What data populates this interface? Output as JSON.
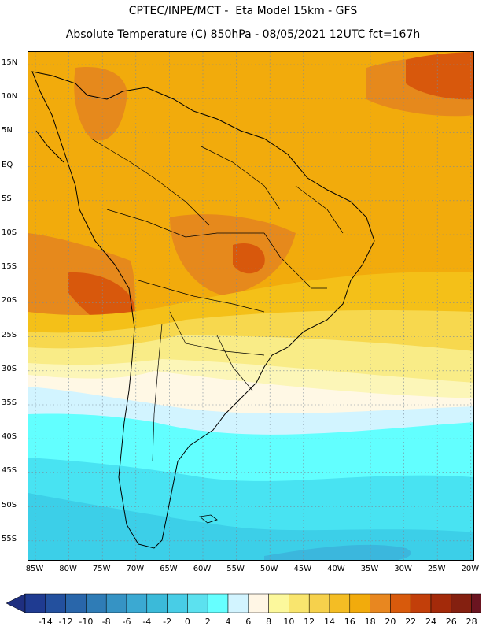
{
  "header": {
    "title_line1": "CPTEC/INPE/MCT -  Eta Model 15km - GFS",
    "title_line2": "Absolute Temperature (C) 850hPa - 08/05/2021 12UTC fct=167h"
  },
  "map": {
    "lat_labels": [
      "15N",
      "10N",
      "5N",
      "EQ",
      "5S",
      "10S",
      "15S",
      "20S",
      "25S",
      "30S",
      "35S",
      "40S",
      "45S",
      "50S",
      "55S"
    ],
    "lon_labels": [
      "85W",
      "80W",
      "75W",
      "70W",
      "65W",
      "60W",
      "55W",
      "50W",
      "45W",
      "40W",
      "35W",
      "30W",
      "25W",
      "20W"
    ],
    "colors": {
      "c18_20": "#f2ab0c",
      "c20_22": "#e6891c",
      "c22_24": "#d8580c",
      "c16_18": "#f4c018",
      "c14_16": "#f7d84e",
      "c12_14": "#f9ec87",
      "c10_12": "#fcf6b8",
      "c6_8": "#fff8e5",
      "c4_6": "#d2f4ff",
      "c2_4": "#62ffff",
      "c0_2": "#48e3f2",
      "cm2_0": "#3ccfe8",
      "cm4_m2": "#3bb7dd"
    }
  },
  "colorbar": {
    "labels": [
      "-14",
      "-12",
      "-10",
      "-8",
      "-6",
      "-4",
      "-2",
      "0",
      "2",
      "4",
      "6",
      "8",
      "10",
      "12",
      "14",
      "16",
      "18",
      "20",
      "22",
      "24",
      "26",
      "28"
    ],
    "colors": [
      "#1f3b91",
      "#23509e",
      "#2966aa",
      "#2f7cb6",
      "#3693c4",
      "#3ba9d2",
      "#3bbad9",
      "#48cde6",
      "#5ce1ef",
      "#66ffff",
      "#d2f4ff",
      "#fff6e5",
      "#fcf89c",
      "#f9e56e",
      "#f6d14c",
      "#f4bd24",
      "#f2ab0c",
      "#e88720",
      "#d85a0c",
      "#c23f0a",
      "#a32a0a",
      "#842010",
      "#6a1420"
    ],
    "left_arrow_color": "#1f2f80",
    "right_arrow_color": "#6a1230"
  }
}
